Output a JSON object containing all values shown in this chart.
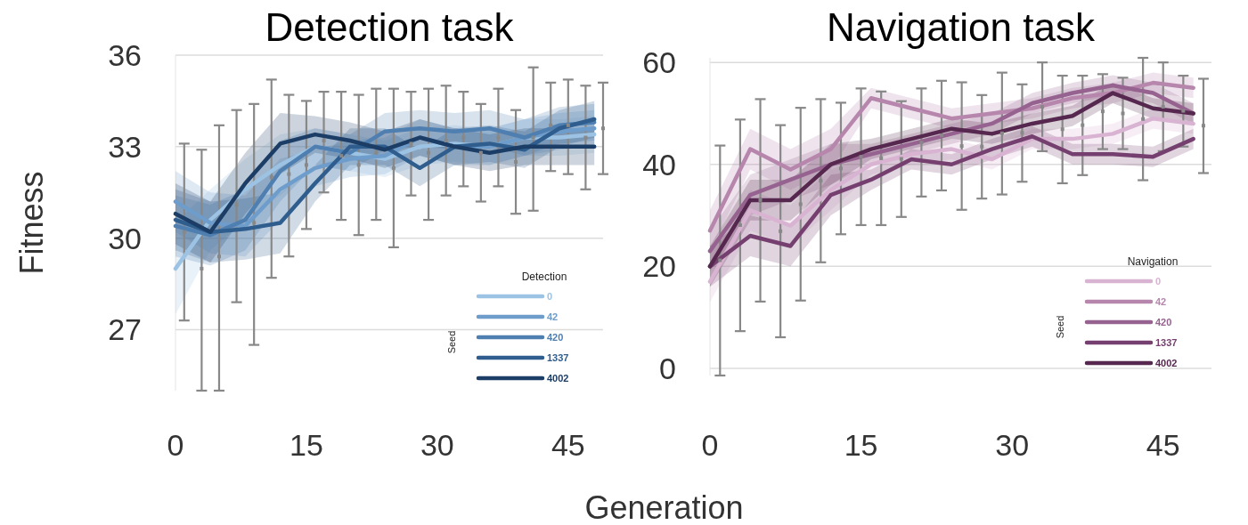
{
  "chart_data": [
    {
      "type": "line",
      "title": "Detection task",
      "ylabel": "Fitness",
      "xlabel": "Generation",
      "legend_title": "Detection",
      "annotations": [
        "Seed"
      ],
      "legend": "bottom right",
      "grid": "y",
      "marker": "none",
      "line_style": "solid",
      "xlim": [
        0,
        49
      ],
      "xticks": [
        0,
        15,
        30,
        45
      ],
      "ylim": [
        25,
        36
      ],
      "yticks": [
        27,
        30,
        33,
        36
      ],
      "x": [
        0,
        4,
        8,
        12,
        16,
        20,
        24,
        28,
        32,
        36,
        40,
        44,
        48
      ],
      "series": [
        {
          "name": "0",
          "color": "#9cc3e4",
          "values": [
            29.0,
            30.6,
            31.6,
            32.4,
            33.0,
            32.8,
            32.6,
            33.0,
            33.1,
            33.0,
            33.3,
            33.3,
            33.4
          ],
          "lower": [
            27.5,
            29.6,
            30.6,
            31.4,
            32.4,
            32.2,
            32.0,
            32.4,
            32.5,
            32.4,
            32.7,
            32.7,
            32.8
          ],
          "upper": [
            30.5,
            31.6,
            32.6,
            33.4,
            33.6,
            33.4,
            33.2,
            33.6,
            33.7,
            33.6,
            33.9,
            33.9,
            34.0
          ]
        },
        {
          "name": "42",
          "color": "#6e9ccb",
          "values": [
            31.2,
            30.5,
            30.4,
            31.6,
            32.3,
            32.6,
            32.7,
            33.3,
            33.0,
            33.0,
            33.3,
            33.5,
            33.6
          ],
          "lower": [
            30.2,
            29.5,
            29.4,
            30.6,
            31.7,
            32.0,
            32.1,
            32.7,
            32.4,
            32.4,
            32.7,
            32.9,
            33.0
          ],
          "upper": [
            32.2,
            31.5,
            31.4,
            32.6,
            32.9,
            33.2,
            33.3,
            33.9,
            33.6,
            33.6,
            33.9,
            34.1,
            34.2
          ]
        },
        {
          "name": "420",
          "color": "#4f7fb0",
          "values": [
            30.4,
            30.1,
            30.6,
            32.2,
            33.0,
            32.8,
            33.5,
            33.6,
            33.5,
            33.6,
            33.3,
            33.7,
            33.8
          ],
          "lower": [
            29.4,
            29.1,
            29.6,
            31.2,
            32.4,
            32.2,
            32.9,
            33.0,
            32.9,
            33.0,
            32.7,
            33.1,
            33.2
          ],
          "upper": [
            31.4,
            31.1,
            31.6,
            33.2,
            33.6,
            33.4,
            34.1,
            34.2,
            34.1,
            34.2,
            33.9,
            34.3,
            34.4
          ]
        },
        {
          "name": "1337",
          "color": "#2e5d8e",
          "values": [
            30.6,
            30.2,
            30.3,
            30.5,
            31.8,
            33.0,
            33.0,
            32.3,
            33.0,
            33.1,
            32.9,
            33.6,
            33.9
          ],
          "lower": [
            29.6,
            29.2,
            29.3,
            29.5,
            31.2,
            32.4,
            32.4,
            31.7,
            32.4,
            32.5,
            32.3,
            33.0,
            33.3
          ],
          "upper": [
            31.6,
            31.2,
            31.3,
            31.5,
            32.4,
            33.6,
            33.6,
            32.9,
            33.6,
            33.7,
            33.5,
            34.2,
            34.5
          ]
        },
        {
          "name": "4002",
          "color": "#1b3d66",
          "values": [
            30.8,
            30.2,
            31.8,
            33.1,
            33.4,
            33.2,
            32.9,
            33.3,
            33.0,
            32.8,
            33.0,
            33.0,
            33.0
          ],
          "lower": [
            29.8,
            29.2,
            30.8,
            32.1,
            32.8,
            32.6,
            32.3,
            32.7,
            32.4,
            32.2,
            32.4,
            32.4,
            32.4
          ],
          "upper": [
            31.8,
            31.2,
            32.8,
            34.1,
            34.0,
            33.8,
            33.5,
            33.9,
            33.6,
            33.4,
            33.6,
            33.6,
            33.6
          ]
        },
        {
          "type": "scatter",
          "color": "#888888",
          "marker": "square",
          "x": [
            1,
            3,
            5,
            7,
            9,
            11,
            13,
            15,
            17,
            19,
            21,
            23,
            25,
            27,
            29,
            31,
            33,
            35,
            37,
            39,
            41,
            43,
            45,
            47,
            49
          ],
          "values": [
            30.2,
            29.0,
            29.4,
            31.1,
            30.5,
            32.0,
            32.1,
            32.4,
            33.2,
            32.7,
            32.4,
            32.8,
            32.3,
            33.1,
            32.8,
            33.2,
            33.3,
            32.8,
            33.3,
            32.5,
            33.3,
            33.7,
            33.7,
            33.3,
            33.6
          ],
          "errors": [
            [
              27.3,
              33.1
            ],
            [
              25.0,
              32.9
            ],
            [
              25.0,
              33.7
            ],
            [
              27.9,
              34.2
            ],
            [
              26.5,
              34.4
            ],
            [
              28.7,
              35.2
            ],
            [
              29.4,
              34.7
            ],
            [
              30.3,
              34.5
            ],
            [
              31.5,
              34.8
            ],
            [
              30.6,
              34.8
            ],
            [
              30.1,
              34.7
            ],
            [
              30.6,
              34.9
            ],
            [
              29.7,
              34.9
            ],
            [
              31.4,
              34.8
            ],
            [
              30.6,
              34.9
            ],
            [
              31.4,
              35.0
            ],
            [
              31.7,
              34.8
            ],
            [
              31.2,
              34.4
            ],
            [
              31.7,
              34.9
            ],
            [
              30.8,
              34.2
            ],
            [
              30.9,
              35.6
            ],
            [
              32.2,
              35.1
            ],
            [
              32.1,
              35.2
            ],
            [
              31.6,
              35.0
            ],
            [
              32.1,
              35.1
            ]
          ]
        }
      ]
    },
    {
      "type": "line",
      "title": "Navigation task",
      "legend_title": "Navigation",
      "annotations": [
        "Seed"
      ],
      "legend": "bottom right",
      "grid": "y",
      "marker": "none",
      "line_style": "solid",
      "xlim": [
        0,
        49.8
      ],
      "xticks": [
        0,
        15,
        30,
        45
      ],
      "ylim": [
        -1.4,
        60.9
      ],
      "yticks": [
        0,
        20,
        40,
        60
      ],
      "x": [
        0,
        4,
        8,
        12,
        16,
        20,
        24,
        28,
        32,
        36,
        40,
        44,
        48
      ],
      "series": [
        {
          "name": "0",
          "color": "#d9b3d2",
          "values": [
            17,
            31,
            28,
            35,
            40,
            42,
            43,
            41,
            45,
            45,
            46,
            49,
            48
          ],
          "lower": [
            13,
            27,
            24,
            31,
            38,
            40,
            41,
            39,
            43,
            43,
            44,
            47,
            46
          ],
          "upper": [
            21,
            35,
            32,
            39,
            42,
            44,
            45,
            43,
            47,
            47,
            48,
            51,
            50
          ]
        },
        {
          "name": "42",
          "color": "#b786ad",
          "values": [
            27,
            43,
            39,
            43,
            53,
            51,
            49,
            50,
            51,
            53,
            54,
            56,
            55
          ],
          "lower": [
            23,
            39,
            35,
            39,
            51,
            49,
            47,
            48,
            49,
            51,
            52,
            54,
            53
          ],
          "upper": [
            31,
            47,
            43,
            47,
            55,
            53,
            51,
            52,
            53,
            55,
            56,
            58,
            57
          ]
        },
        {
          "name": "420",
          "color": "#96628f",
          "values": [
            23,
            34,
            37,
            40,
            42,
            44,
            46,
            48,
            52,
            54,
            55.5,
            54,
            50
          ],
          "lower": [
            19,
            30,
            33,
            36,
            40,
            42,
            44,
            46,
            50,
            52,
            53.5,
            52,
            48
          ],
          "upper": [
            27,
            38,
            41,
            44,
            44,
            46,
            48,
            50,
            54,
            56,
            57.5,
            56,
            52
          ]
        },
        {
          "name": "1337",
          "color": "#75406f",
          "values": [
            20,
            26,
            24,
            34,
            37,
            41,
            40,
            43,
            45.5,
            42,
            42,
            41.5,
            45
          ],
          "lower": [
            16,
            22,
            20,
            30,
            35,
            39,
            38,
            41,
            43.5,
            40,
            40,
            39.5,
            43
          ],
          "upper": [
            24,
            30,
            28,
            38,
            39,
            43,
            42,
            45,
            47.5,
            44,
            44,
            43.5,
            47
          ]
        },
        {
          "name": "4002",
          "color": "#56284f",
          "values": [
            20,
            33,
            33,
            40,
            43,
            45,
            47,
            46,
            48,
            49.5,
            54,
            51,
            50
          ],
          "lower": [
            16,
            29,
            29,
            36,
            41,
            43,
            45,
            44,
            46,
            47.5,
            52,
            49,
            48
          ],
          "upper": [
            24,
            37,
            37,
            44,
            45,
            47,
            49,
            48,
            50,
            51.5,
            56,
            53,
            52
          ]
        },
        {
          "type": "scatter",
          "color": "#888888",
          "marker": "square",
          "x": [
            1,
            3,
            5,
            7,
            9,
            11,
            13,
            15,
            17,
            19,
            21,
            23,
            25,
            27,
            29,
            31,
            33,
            35,
            37,
            39,
            41,
            43,
            45,
            47,
            49
          ],
          "values": [
            21.2,
            28.1,
            33.0,
            26.9,
            32.2,
            36.8,
            39.2,
            41.5,
            41.2,
            41.1,
            44.3,
            45.7,
            43.6,
            43.5,
            46.1,
            46.2,
            51.3,
            46.9,
            47.7,
            50.4,
            50.0,
            48.9,
            51.3,
            50.5,
            47.6
          ],
          "errors": [
            [
              -1.4,
              43.7
            ],
            [
              7.3,
              48.8
            ],
            [
              13.1,
              52.8
            ],
            [
              6.1,
              47.7
            ],
            [
              13.3,
              51.1
            ],
            [
              20.8,
              52.8
            ],
            [
              26.3,
              52.1
            ],
            [
              28.1,
              54.9
            ],
            [
              28.1,
              54.3
            ],
            [
              29.7,
              52.4
            ],
            [
              33.7,
              54.9
            ],
            [
              34.9,
              56.4
            ],
            [
              31.1,
              56.1
            ],
            [
              33.3,
              53.6
            ],
            [
              34.1,
              58.0
            ],
            [
              36.6,
              55.7
            ],
            [
              42.6,
              60.0
            ],
            [
              36.3,
              57.4
            ],
            [
              37.9,
              57.4
            ],
            [
              43.0,
              57.7
            ],
            [
              43.0,
              57.0
            ],
            [
              36.9,
              60.9
            ],
            [
              42.6,
              60.0
            ],
            [
              43.5,
              57.4
            ],
            [
              38.3,
              56.8
            ]
          ]
        }
      ]
    }
  ]
}
